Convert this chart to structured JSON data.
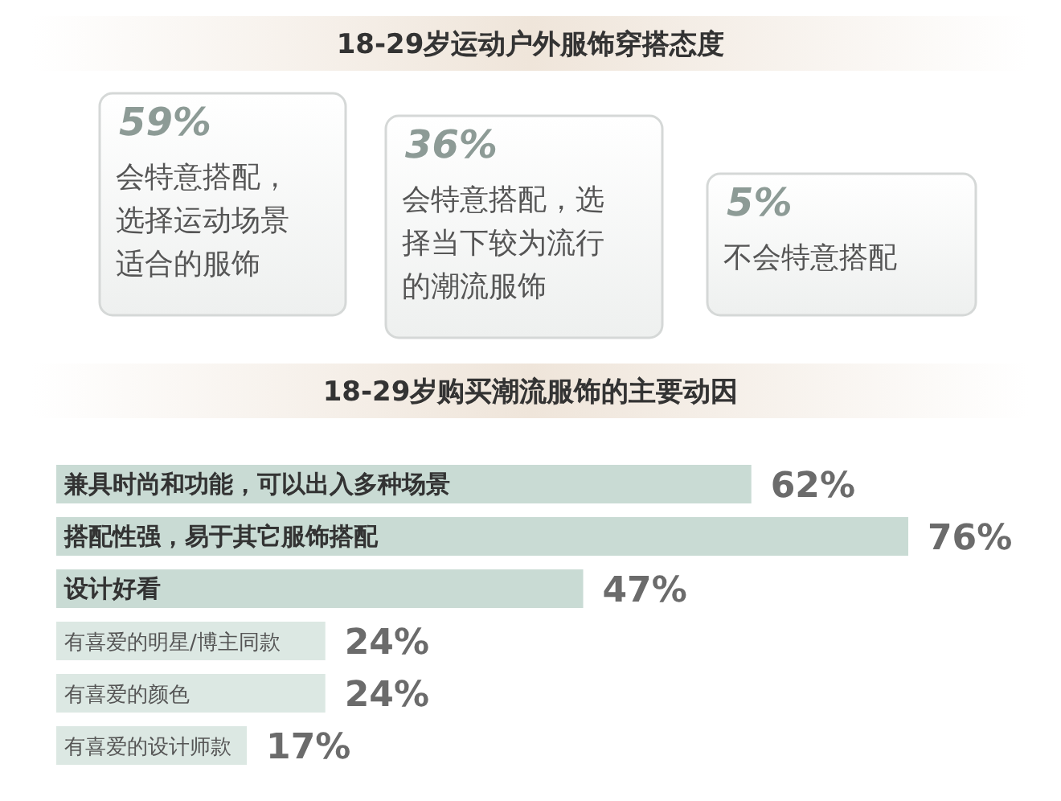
{
  "chart_data": [
    {
      "type": "other",
      "title": "18-29岁运动户外服饰穿搭态度",
      "annotations": [
        "59%",
        "会特意搭配，选择运动场景适合的服饰",
        "36%",
        "会特意搭配，选择当下较为流行的潮流服饰",
        "5%",
        "不会特意搭配"
      ]
    },
    {
      "type": "bar",
      "orientation": "horizontal",
      "title": "18-29岁购买潮流服饰的主要动因",
      "categories": [
        "兼具时尚和功能，可以出入多种场景",
        "搭配性强，易于其它服饰搭配",
        "设计好看",
        "有喜爱的明星/博主同款",
        "有喜爱的颜色",
        "有喜爱的设计师款"
      ],
      "values": [
        62,
        76,
        47,
        24,
        24,
        17
      ],
      "colors": [
        "#c9dbd4",
        "#c9dbd4",
        "#c9dbd4",
        "#dce8e3",
        "#dce8e3",
        "#dce8e3"
      ],
      "value_labels": [
        "62%",
        "76%",
        "47%",
        "24%",
        "24%",
        "17%"
      ]
    }
  ]
}
